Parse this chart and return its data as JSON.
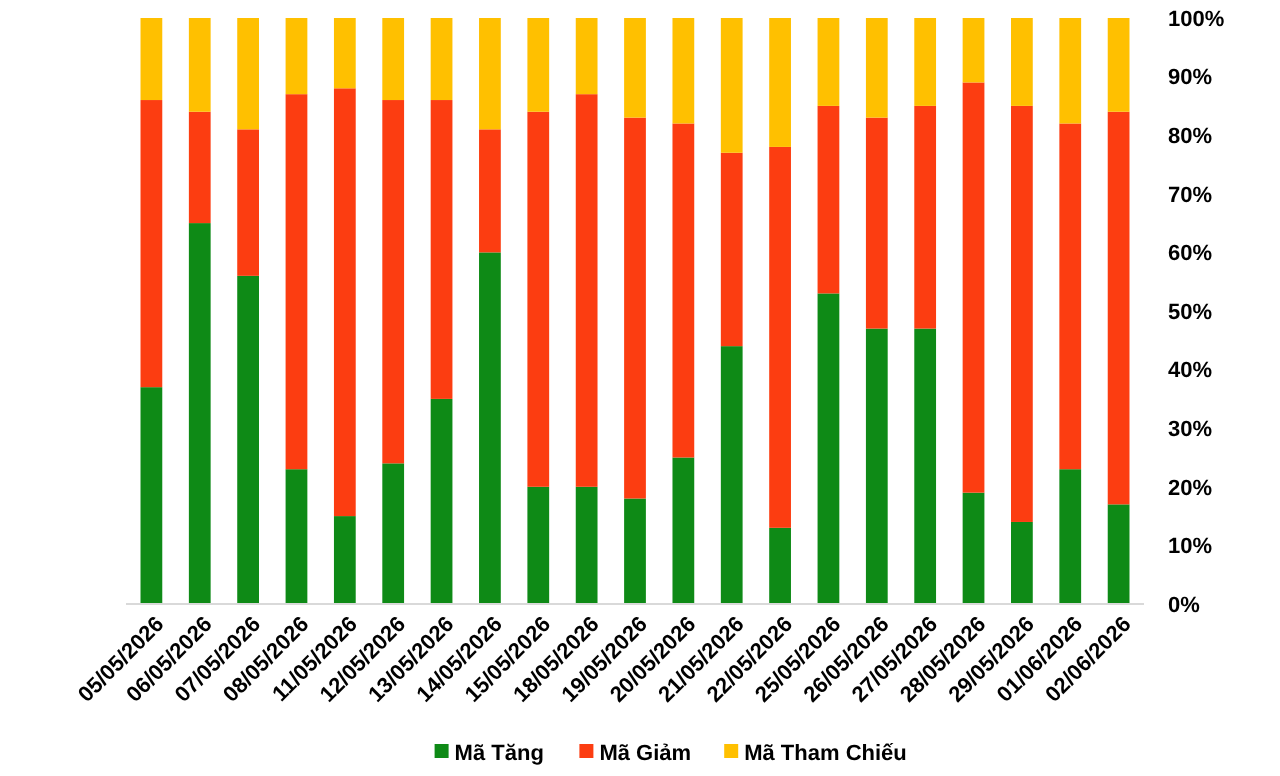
{
  "chart_data": {
    "type": "bar",
    "stacked": true,
    "categories": [
      "05/05/2026",
      "06/05/2026",
      "07/05/2026",
      "08/05/2026",
      "11/05/2026",
      "12/05/2026",
      "13/05/2026",
      "14/05/2026",
      "15/05/2026",
      "18/05/2026",
      "19/05/2026",
      "20/05/2026",
      "21/05/2026",
      "22/05/2026",
      "25/05/2026",
      "26/05/2026",
      "27/05/2026",
      "28/05/2026",
      "29/05/2026",
      "01/06/2026",
      "02/06/2026"
    ],
    "series": [
      {
        "name": "Mã Tăng",
        "color": "#0e8a16",
        "values": [
          37,
          65,
          56,
          23,
          15,
          24,
          35,
          60,
          20,
          20,
          18,
          25,
          44,
          13,
          53,
          47,
          47,
          19,
          14,
          23,
          17
        ]
      },
      {
        "name": "Mã Giảm",
        "color": "#fc3d11",
        "values": [
          49,
          19,
          25,
          64,
          73,
          62,
          51,
          21,
          64,
          67,
          65,
          57,
          33,
          65,
          32,
          36,
          38,
          70,
          71,
          59,
          67
        ]
      },
      {
        "name": "Mã Tham Chiếu",
        "color": "#ffc000",
        "values": [
          14,
          16,
          19,
          13,
          12,
          14,
          14,
          19,
          16,
          13,
          17,
          18,
          23,
          22,
          15,
          17,
          15,
          11,
          15,
          18,
          16
        ]
      }
    ],
    "ylim": [
      0,
      100
    ],
    "yticks": [
      {
        "value": 0,
        "label": "0%"
      },
      {
        "value": 10,
        "label": "10%"
      },
      {
        "value": 20,
        "label": "20%"
      },
      {
        "value": 30,
        "label": "30%"
      },
      {
        "value": 40,
        "label": "40%"
      },
      {
        "value": 50,
        "label": "50%"
      },
      {
        "value": 60,
        "label": "60%"
      },
      {
        "value": 70,
        "label": "70%"
      },
      {
        "value": 80,
        "label": "80%"
      },
      {
        "value": 90,
        "label": "90%"
      },
      {
        "value": 100,
        "label": "100%"
      }
    ],
    "grid": false,
    "legend": "bottom"
  }
}
